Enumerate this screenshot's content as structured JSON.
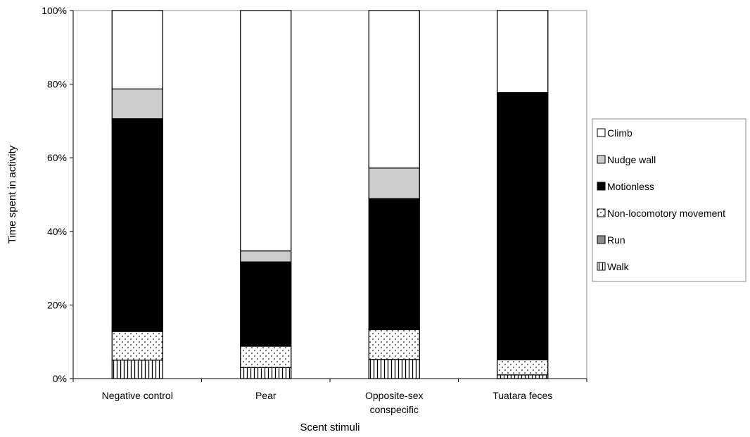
{
  "chart_data": {
    "type": "bar",
    "stacked": true,
    "title": "",
    "xlabel": "Scent stimuli",
    "ylabel": "Time spent in activity",
    "ylim": [
      0,
      100
    ],
    "yticks": [
      "0%",
      "20%",
      "40%",
      "60%",
      "80%",
      "100%"
    ],
    "grid": false,
    "legend_position": "right",
    "categories": [
      [
        "Negative control"
      ],
      [
        "Pear"
      ],
      [
        "Opposite-sex",
        "conspecific"
      ],
      [
        "Tuatara feces"
      ]
    ],
    "series": [
      {
        "name": "Walk",
        "pattern": "vertical-lines",
        "values": [
          5,
          3,
          5.2,
          1
        ]
      },
      {
        "name": "Run",
        "pattern": "solid-gray",
        "values": [
          0,
          0,
          0,
          0
        ]
      },
      {
        "name": "Non-locomotory movement",
        "pattern": "dots",
        "values": [
          7.8,
          5.8,
          8.1,
          4.1
        ]
      },
      {
        "name": "Motionless",
        "pattern": "solid-black",
        "values": [
          57.8,
          22.9,
          35.6,
          72.6
        ]
      },
      {
        "name": "Nudge wall",
        "pattern": "solid-lightgray",
        "values": [
          8.1,
          3,
          8.3,
          0
        ]
      },
      {
        "name": "Climb",
        "pattern": "white",
        "values": [
          21.3,
          65.3,
          42.8,
          22.3
        ]
      }
    ],
    "legend_order": [
      "Climb",
      "Nudge wall",
      "Motionless",
      "Non-locomotory movement",
      "Run",
      "Walk"
    ]
  }
}
